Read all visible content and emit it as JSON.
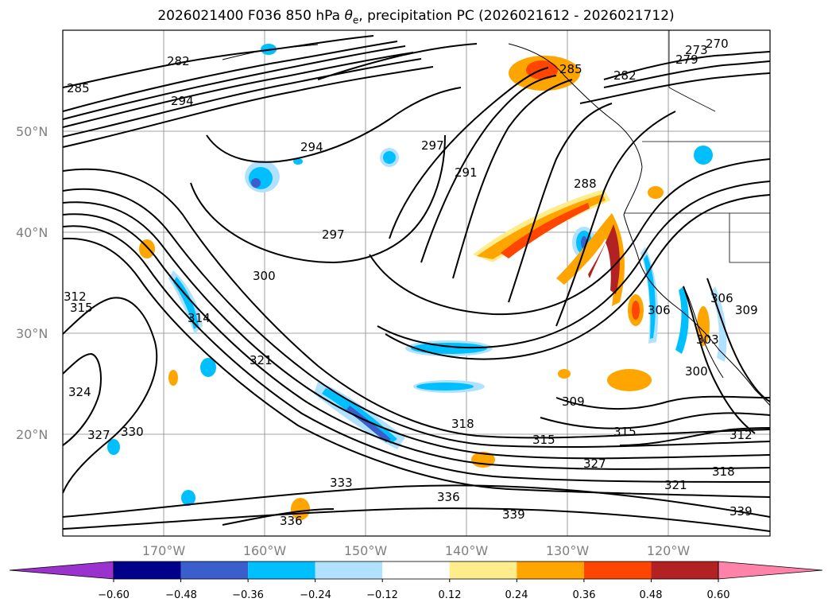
{
  "title": {
    "prefix": "2026021400 F036 850 hPa ",
    "symbol": "θ",
    "symbol_sub": "e",
    "suffix": ", precipitation PC (2026021612 - 2026021712)"
  },
  "lat_labels": [
    "50°N",
    "40°N",
    "30°N",
    "20°N"
  ],
  "lon_labels": [
    "170°W",
    "160°W",
    "150°W",
    "140°W",
    "130°W",
    "120°W"
  ],
  "contour_labels": [
    "282",
    "285",
    "294",
    "294",
    "297",
    "291",
    "288",
    "297",
    "300",
    "314",
    "321",
    "324",
    "330",
    "327",
    "312",
    "315",
    "318",
    "315",
    "315",
    "309",
    "300",
    "306",
    "306",
    "303",
    "309",
    "312",
    "327",
    "321",
    "318",
    "339",
    "333",
    "336",
    "336",
    "339",
    "270",
    "273",
    "279",
    "282",
    "285"
  ],
  "colorbar": {
    "ticks": [
      "−0.60",
      "−0.48",
      "−0.36",
      "−0.24",
      "−0.12",
      "0.12",
      "0.24",
      "0.36",
      "0.48",
      "0.60"
    ],
    "colors": [
      "#9a32cd",
      "#00008b",
      "#3a5fcd",
      "#00bfff",
      "#b0e2ff",
      "#ffffff",
      "#ffec8b",
      "#ffa500",
      "#ff4500",
      "#b22222",
      "#ff82ab"
    ]
  }
}
